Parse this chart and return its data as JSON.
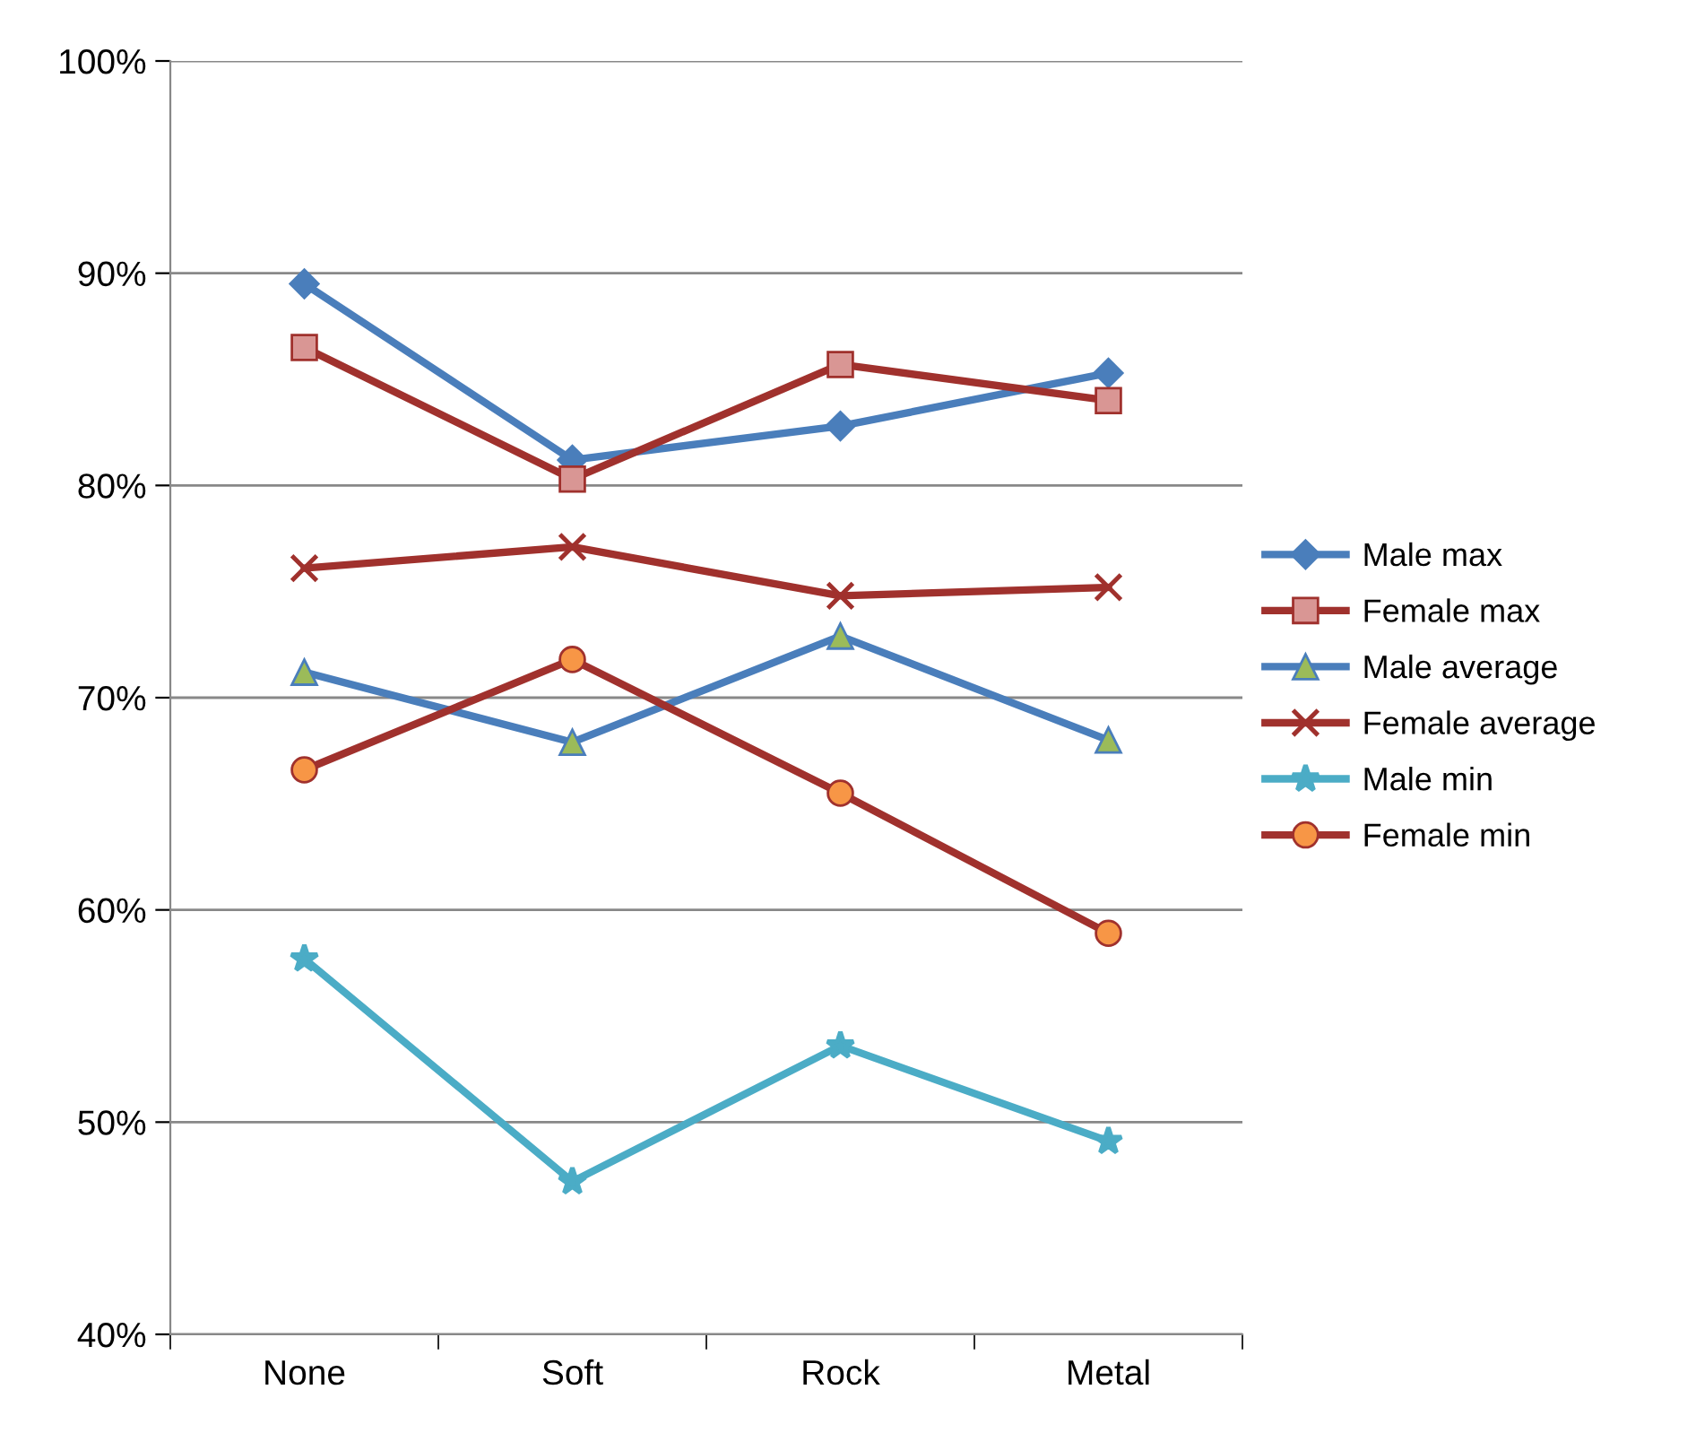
{
  "chart_data": {
    "type": "line",
    "categories": [
      "None",
      "Soft",
      "Rock",
      "Metal"
    ],
    "series": [
      {
        "name": "Male max",
        "color": "#4a7ebb",
        "colors": [
          "#4a7ebb",
          "#4a7ebb",
          "#4a7ebb",
          "#4a7ebb"
        ],
        "marker": "diamond",
        "values": [
          89.5,
          81.2,
          82.8,
          85.3
        ]
      },
      {
        "name": "Female max",
        "color": "#a0312d",
        "colors": [
          "#d99694",
          "#d99694",
          "#d99694",
          "#d99694"
        ],
        "marker": "square",
        "values": [
          86.5,
          80.3,
          85.7,
          84.0
        ]
      },
      {
        "name": "Male average",
        "color": "#4a7ebb",
        "colors": [
          "#9bbb59",
          "#9bbb59",
          "#9bbb59",
          "#9bbb59"
        ],
        "marker": "triangle",
        "values": [
          71.2,
          67.9,
          72.9,
          68.0
        ]
      },
      {
        "name": "Female average",
        "color": "#a0312d",
        "colors": [
          "#a0312d",
          "#a0312d",
          "#a0312d",
          "#a0312d"
        ],
        "marker": "cross",
        "values": [
          76.1,
          77.1,
          74.8,
          75.2
        ]
      },
      {
        "name": "Male min",
        "color": "#4bacc6",
        "colors": [
          "#4bacc6",
          "#4bacc6",
          "#4bacc6",
          "#4bacc6"
        ],
        "marker": "star",
        "values": [
          57.7,
          47.2,
          53.6,
          49.1
        ]
      },
      {
        "name": "Female min",
        "color": "#a0312d",
        "colors": [
          "#f79646",
          "#f79646",
          "#f79646",
          "#f79646"
        ],
        "marker": "circle",
        "values": [
          66.6,
          71.8,
          65.5,
          58.9
        ]
      }
    ],
    "ylim": [
      40,
      100
    ],
    "yticks": [
      {
        "value": 40,
        "label": "40%"
      },
      {
        "value": 50,
        "label": "50%"
      },
      {
        "value": 60,
        "label": "60%"
      },
      {
        "value": 70,
        "label": "70%"
      },
      {
        "value": 80,
        "label": "80%"
      },
      {
        "value": 90,
        "label": "90%"
      },
      {
        "value": 100,
        "label": "100%"
      }
    ],
    "grid": "y",
    "legend": "right"
  }
}
